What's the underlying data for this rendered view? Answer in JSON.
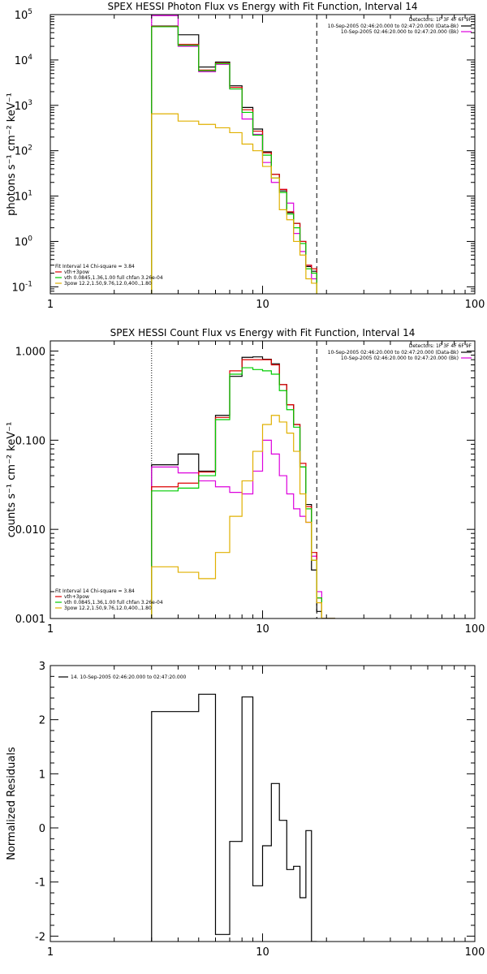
{
  "chart_data": [
    {
      "type": "line",
      "title": "SPEX HESSI Photon Flux vs Energy with Fit Function, Interval 14",
      "ylabel": "photons s⁻¹ cm⁻² keV⁻¹",
      "xlabel": "",
      "xscale": "log",
      "yscale": "log",
      "xlim": [
        1,
        100
      ],
      "ylim": [
        0.07,
        100000
      ],
      "xticks": [
        "1",
        "10",
        "100"
      ],
      "yticks": [
        {
          "base": "10",
          "exp": "-1",
          "value": 0.1
        },
        {
          "base": "10",
          "exp": "0",
          "value": 1
        },
        {
          "base": "10",
          "exp": "1",
          "value": 10
        },
        {
          "base": "10",
          "exp": "2",
          "value": 100
        },
        {
          "base": "10",
          "exp": "3",
          "value": 1000
        },
        {
          "base": "10",
          "exp": "4",
          "value": 10000
        },
        {
          "base": "10",
          "exp": "5",
          "value": 100000
        }
      ],
      "vlines": [
        {
          "x": 3,
          "style": "dotted"
        },
        {
          "x": 18,
          "style": "dashed"
        }
      ],
      "legend_top_right": {
        "detectors": "Detectors: 1F 3F 4F 6F 9F",
        "lines": [
          {
            "text": "10-Sep-2005 02:46:20.000 to 02:47:20.000 (Data-Bk)",
            "color": "#000000"
          },
          {
            "text": "10-Sep-2005 02:46:20.000 to 02:47:20.000 (Bk)",
            "color": "#dd00dd"
          }
        ]
      },
      "legend_bottom_left": {
        "header": "Fit Interval 14   Chi-square = 3.84",
        "lines": [
          {
            "text": "vth+3pow",
            "color": "#dd0000"
          },
          {
            "text": "vth 0.0845,1.36,1.00  full chfan 3.26e-04",
            "color": "#00cc00"
          },
          {
            "text": "3pow 12.2,1.50,9.76,12.0,400.,1.80",
            "color": "#e0b000"
          }
        ]
      },
      "edges": [
        3,
        4,
        5,
        6,
        7,
        8,
        9,
        10,
        11,
        12,
        13,
        14,
        15,
        16,
        17,
        18
      ],
      "series": [
        {
          "name": "Data-Bk",
          "color": "#000000",
          "values": [
            56000,
            36000,
            7000,
            9000,
            2700,
            900,
            300,
            95,
            30,
            13,
            4.3,
            2.5,
            1,
            0.28,
            0.22
          ]
        },
        {
          "name": "Bk",
          "color": "#dd00dd",
          "values": [
            95000,
            20000,
            5500,
            8000,
            2300,
            500,
            230,
            55,
            20,
            14,
            7,
            1.5,
            0.6,
            0.3,
            0.15
          ]
        },
        {
          "name": "vth+3pow",
          "color": "#dd0000",
          "values": [
            55000,
            22000,
            6000,
            8500,
            2500,
            800,
            270,
            90,
            30,
            14,
            4.5,
            2.5,
            1,
            0.3,
            0.25
          ]
        },
        {
          "name": "vth",
          "color": "#00cc00",
          "values": [
            54000,
            21000,
            5800,
            8300,
            2300,
            700,
            220,
            80,
            25,
            12,
            4,
            2,
            0.9,
            0.25,
            0.2
          ]
        },
        {
          "name": "3pow",
          "color": "#e0b000",
          "values": [
            650,
            450,
            380,
            320,
            250,
            140,
            100,
            45,
            25,
            5,
            3,
            1,
            0.5,
            0.15,
            0.12
          ]
        }
      ]
    },
    {
      "type": "line",
      "title": "SPEX HESSI Count Flux vs Energy with Fit Function, Interval 14",
      "ylabel": "counts s⁻¹ cm⁻² keV⁻¹",
      "xlabel": "",
      "xscale": "log",
      "yscale": "log",
      "xlim": [
        1,
        100
      ],
      "ylim": [
        0.001,
        1.3
      ],
      "xticks": [
        "1",
        "10",
        "100"
      ],
      "yticks": [
        {
          "label": "0.001",
          "value": 0.001
        },
        {
          "label": "0.010",
          "value": 0.01
        },
        {
          "label": "0.100",
          "value": 0.1
        },
        {
          "label": "1.000",
          "value": 1
        }
      ],
      "vlines": [
        {
          "x": 3,
          "style": "dotted"
        },
        {
          "x": 18,
          "style": "dashed"
        }
      ],
      "legend_top_right": {
        "detectors": "Detectors: 1F 3F 4F 6F 9F",
        "lines": [
          {
            "text": "10-Sep-2005 02:46:20.000 to 02:47:20.000 (Data-Bk)",
            "color": "#000000"
          },
          {
            "text": "10-Sep-2005 02:46:20.000 to 02:47:20.000 (Bk)",
            "color": "#dd00dd"
          }
        ]
      },
      "legend_bottom_left": {
        "header": "Fit Interval 14   Chi-square = 3.84",
        "lines": [
          {
            "text": "vth+3pow",
            "color": "#dd0000"
          },
          {
            "text": "vth 0.0845,1.36,1.00  full chfan 3.26e-04",
            "color": "#00cc00"
          },
          {
            "text": "3pow 12.2,1.50,9.76,12.0,400.,1.80",
            "color": "#e0b000"
          }
        ]
      },
      "edges": [
        3,
        4,
        5,
        6,
        7,
        8,
        9,
        10,
        11,
        12,
        13,
        14,
        15,
        16,
        17,
        18,
        19,
        20,
        22
      ],
      "series": [
        {
          "name": "Data-Bk",
          "color": "#000000",
          "values": [
            0.053,
            0.07,
            0.045,
            0.19,
            0.52,
            0.85,
            0.86,
            0.81,
            0.72,
            0.42,
            0.25,
            0.15,
            0.05,
            0.019,
            0.0035,
            0.0012,
            0.0009,
            0.0008
          ]
        },
        {
          "name": "Bk",
          "color": "#dd00dd",
          "values": [
            0.05,
            0.043,
            0.035,
            0.03,
            0.026,
            0.025,
            0.045,
            0.1,
            0.07,
            0.04,
            0.025,
            0.017,
            0.014,
            0.012,
            0.005,
            0.002,
            0.001,
            0.0008
          ]
        },
        {
          "name": "vth+3pow",
          "color": "#dd0000",
          "values": [
            0.03,
            0.033,
            0.044,
            0.18,
            0.6,
            0.8,
            0.8,
            0.8,
            0.7,
            0.42,
            0.25,
            0.15,
            0.055,
            0.018,
            0.0055,
            0.0017,
            0.001,
            0.0008
          ]
        },
        {
          "name": "vth",
          "color": "#00cc00",
          "values": [
            0.027,
            0.029,
            0.04,
            0.17,
            0.55,
            0.65,
            0.62,
            0.6,
            0.55,
            0.36,
            0.22,
            0.14,
            0.05,
            0.017,
            0.0045,
            0.0017,
            0.001,
            0.0008
          ]
        },
        {
          "name": "3pow",
          "color": "#e0b000",
          "values": [
            0.0038,
            0.0033,
            0.0028,
            0.0055,
            0.014,
            0.035,
            0.075,
            0.15,
            0.19,
            0.16,
            0.12,
            0.075,
            0.025,
            0.012,
            0.0045,
            0.0015,
            0.0009,
            0.0008
          ]
        }
      ]
    },
    {
      "type": "line",
      "title": "",
      "ylabel": "Normalized Residuals",
      "xlabel": "",
      "xscale": "log",
      "yscale": "linear",
      "xlim": [
        1,
        100
      ],
      "ylim": [
        -2.1,
        3.0
      ],
      "xticks": [
        "1",
        "10",
        "100"
      ],
      "yticks": [
        {
          "label": "-2",
          "value": -2
        },
        {
          "label": "-1",
          "value": -1
        },
        {
          "label": "0",
          "value": 0
        },
        {
          "label": "1",
          "value": 1
        },
        {
          "label": "2",
          "value": 2
        },
        {
          "label": "3",
          "value": 3
        }
      ],
      "legend_top_left": [
        {
          "text": "14. 10-Sep-2005 02:46:20.000 to 02:47:20.000",
          "color": "#000000"
        }
      ],
      "edges": [
        3,
        4,
        5,
        6,
        7,
        8,
        9,
        10,
        11,
        12,
        13,
        14,
        15,
        16,
        17,
        18
      ],
      "series": [
        {
          "name": "14. 10-Sep-2005 02:46:20.000 to 02:47:20.000",
          "color": "#000000",
          "values": [
            2.15,
            2.15,
            2.47,
            -1.97,
            -0.25,
            2.42,
            -1.07,
            -0.33,
            0.82,
            0.14,
            -0.77,
            -0.71,
            -1.29,
            -0.05,
            -2.1
          ]
        }
      ]
    }
  ]
}
